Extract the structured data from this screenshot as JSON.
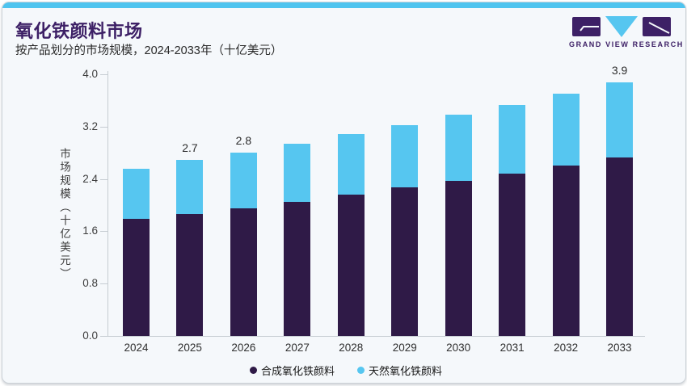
{
  "header": {
    "title": "氧化铁颜料市场",
    "subtitle": "按产品划分的市场规模，2024-2033年（十亿美元）",
    "logo_text": "GRAND VIEW RESEARCH"
  },
  "colors": {
    "brand_purple": "#3d2066",
    "bar_purple": "#2f1a47",
    "bar_blue": "#56c6f0",
    "topbar_blue": "#4fc4ef",
    "axis_gray": "#c6ccd2"
  },
  "chart_data": {
    "type": "bar",
    "stacked": true,
    "title": "氧化铁颜料市场",
    "subtitle": "按产品划分的市场规模，2024-2033年（十亿美元）",
    "ylabel": "市场规模（十亿美元）",
    "xlabel": "",
    "categories": [
      "2024",
      "2025",
      "2026",
      "2027",
      "2028",
      "2029",
      "2030",
      "2031",
      "2032",
      "2033"
    ],
    "series": [
      {
        "name": "合成氧化铁颜料",
        "color": "#2f1a47",
        "values": [
          1.79,
          1.86,
          1.95,
          2.05,
          2.16,
          2.27,
          2.37,
          2.48,
          2.6,
          2.73
        ]
      },
      {
        "name": "天然氧化铁颜料",
        "color": "#56c6f0",
        "values": [
          0.77,
          0.83,
          0.85,
          0.89,
          0.93,
          0.95,
          1.01,
          1.05,
          1.1,
          1.15
        ]
      }
    ],
    "totals": [
      2.56,
      2.69,
      2.8,
      2.94,
      3.09,
      3.22,
      3.38,
      3.53,
      3.7,
      3.88
    ],
    "data_labels": [
      "",
      "2.7",
      "2.8",
      "",
      "",
      "",
      "",
      "",
      "",
      "3.9"
    ],
    "y_ticks": [
      "0.0",
      "0.8",
      "1.6",
      "2.4",
      "3.2",
      "4.0"
    ],
    "ylim": [
      0,
      4.0
    ],
    "grid": false,
    "legend_position": "bottom"
  }
}
